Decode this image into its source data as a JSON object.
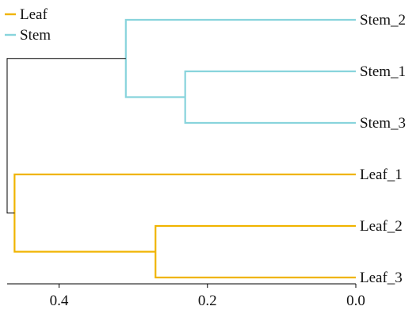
{
  "chart_data": {
    "type": "dendrogram",
    "orientation": "right",
    "xlim": [
      0.47,
      0.0
    ],
    "xticks": [
      0.4,
      0.2,
      0.0
    ],
    "xtick_labels": [
      "0.4",
      "0.2",
      "0.0"
    ],
    "leaves": [
      "Stem_2",
      "Stem_1",
      "Stem_3",
      "Leaf_1",
      "Leaf_2",
      "Leaf_3"
    ],
    "merges": [
      {
        "children": [
          "Stem_1",
          "Stem_3"
        ],
        "height": 0.23,
        "cluster": "Stem"
      },
      {
        "children": [
          "Stem_2",
          "(Stem_1,Stem_3)"
        ],
        "height": 0.31,
        "cluster": "Stem"
      },
      {
        "children": [
          "Leaf_2",
          "Leaf_3"
        ],
        "height": 0.27,
        "cluster": "Leaf"
      },
      {
        "children": [
          "Leaf_1",
          "(Leaf_2,Leaf_3)"
        ],
        "height": 0.46,
        "cluster": "Leaf"
      },
      {
        "children": [
          "Stem",
          "Leaf"
        ],
        "height": 0.47,
        "cluster": "root"
      }
    ],
    "legend": {
      "position": "top-left",
      "entries": [
        {
          "name": "Leaf",
          "color": "#F0B400"
        },
        {
          "name": "Stem",
          "color": "#88D4DC"
        }
      ]
    },
    "colors": {
      "Leaf": "#F0B400",
      "Stem": "#88D4DC",
      "root": "#000000"
    }
  }
}
